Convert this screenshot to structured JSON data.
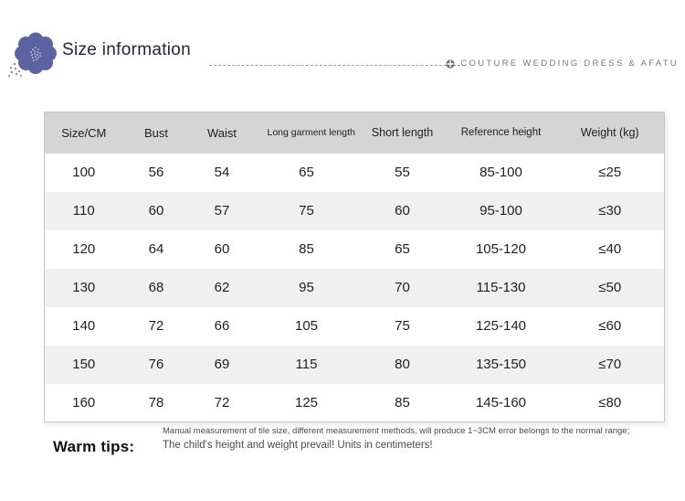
{
  "header": {
    "title": "Size information",
    "brand": "COUTURE WEDDING DRESS & AFATU"
  },
  "table": {
    "columns": [
      "Size/CM",
      "Bust",
      "Waist",
      "Long garment length",
      "Short length",
      "Reference height",
      "Weight (kg)"
    ],
    "rows": [
      [
        "100",
        "56",
        "54",
        "65",
        "55",
        "85-100",
        "≤25"
      ],
      [
        "110",
        "60",
        "57",
        "75",
        "60",
        "95-100",
        "≤30"
      ],
      [
        "120",
        "64",
        "60",
        "85",
        "65",
        "105-120",
        "≤40"
      ],
      [
        "130",
        "68",
        "62",
        "95",
        "70",
        "115-130",
        "≤50"
      ],
      [
        "140",
        "72",
        "66",
        "105",
        "75",
        "125-140",
        "≤60"
      ],
      [
        "150",
        "76",
        "69",
        "115",
        "80",
        "135-150",
        "≤70"
      ],
      [
        "160",
        "78",
        "72",
        "125",
        "85",
        "145-160",
        "≤80"
      ]
    ]
  },
  "tips": {
    "label": "Warm tips:",
    "measurement_note": "Manual measurement of tile size, different measurement methods, will produce 1~3CM error belongs to the normal range;",
    "units_note": "The child's height and weight prevail! Units in centimeters!"
  },
  "colors": {
    "accent_indigo": "#5c63a2",
    "table_header_bg": "#d5d5d5",
    "row_alt_bg": "#f0f0f0",
    "table_border": "#c6c6c6",
    "brand_text": "#787878",
    "text_dark": "#1f1f1f"
  }
}
